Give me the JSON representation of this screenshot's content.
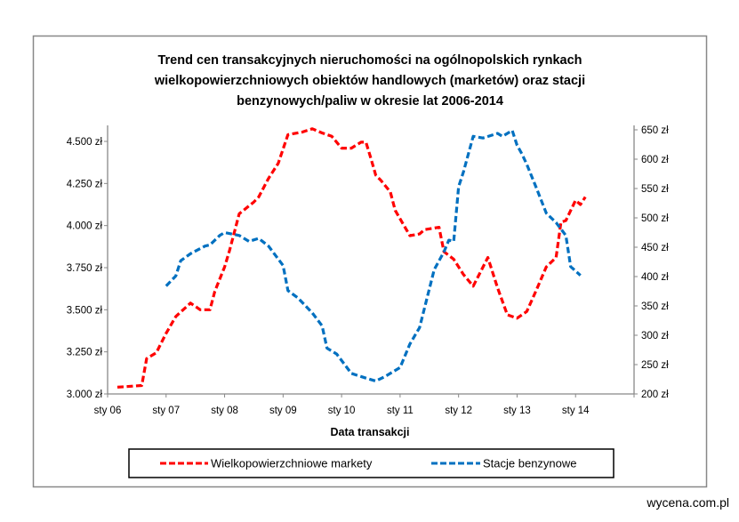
{
  "footer": "wycena.com.pl",
  "chart_data": {
    "type": "line",
    "title_lines": [
      "Trend cen transakcyjnych nieruchomości na ogólnopolskich rynkach",
      "wielkopowierzchniowych obiektów handlowych (marketów) oraz stacji",
      "benzynowych/paliw w okresie lat 2006-2014"
    ],
    "xlabel": "Data transakcji",
    "x_ticks": [
      "sty 06",
      "sty 07",
      "sty 08",
      "sty 09",
      "sty 10",
      "sty 11",
      "sty 12",
      "sty 13",
      "sty 14"
    ],
    "xlim": [
      "2006-01",
      "2015-01"
    ],
    "y_left_ticks": [
      "3.000 zł",
      "3.250 zł",
      "3.500 zł",
      "3.750 zł",
      "4.000 zł",
      "4.250 zł",
      "4.500 zł"
    ],
    "y_left_lim": [
      3.0,
      4.6
    ],
    "y_right_ticks": [
      "200 zł",
      "250 zł",
      "300 zł",
      "350 zł",
      "400 zł",
      "450 zł",
      "500 zł",
      "550 zł",
      "600 zł",
      "650 zł"
    ],
    "y_right_lim": [
      200,
      650
    ],
    "grid": false,
    "legend_position": "bottom",
    "series": [
      {
        "name": "Wielkopowierzchniowe markety",
        "axis": "left",
        "color": "#ff0000",
        "x": [
          "2006-03",
          "2006-08",
          "2006-09",
          "2006-11",
          "2007-01",
          "2007-03",
          "2007-06",
          "2007-08",
          "2007-10",
          "2007-11",
          "2008-01",
          "2008-02",
          "2008-04",
          "2008-07",
          "2008-08",
          "2008-10",
          "2008-12",
          "2009-02",
          "2009-05",
          "2009-07",
          "2009-09",
          "2009-11",
          "2010-01",
          "2010-03",
          "2010-05",
          "2010-06",
          "2010-07",
          "2010-08",
          "2010-09",
          "2010-11",
          "2010-12",
          "2011-03",
          "2011-05",
          "2011-06",
          "2011-09",
          "2011-10",
          "2011-12",
          "2012-02",
          "2012-04",
          "2012-07",
          "2012-09",
          "2012-11",
          "2013-01",
          "2013-03",
          "2013-05",
          "2013-07",
          "2013-09",
          "2013-10",
          "2013-11",
          "2014-01",
          "2014-02",
          "2014-03"
        ],
        "values": [
          3.04,
          3.05,
          3.21,
          3.245,
          3.36,
          3.46,
          3.54,
          3.5,
          3.5,
          3.61,
          3.755,
          3.85,
          4.07,
          4.14,
          4.17,
          4.28,
          4.37,
          4.54,
          4.556,
          4.575,
          4.55,
          4.53,
          4.46,
          4.46,
          4.495,
          4.495,
          4.4,
          4.3,
          4.27,
          4.2,
          4.09,
          3.94,
          3.95,
          3.976,
          3.99,
          3.845,
          3.8,
          3.71,
          3.64,
          3.81,
          3.63,
          3.47,
          3.45,
          3.49,
          3.62,
          3.755,
          3.81,
          4.02,
          4.03,
          4.15,
          4.125,
          4.17
        ]
      },
      {
        "name": "Stacje benzynowe",
        "axis": "right",
        "color": "#0070c0",
        "x": [
          "2007-01",
          "2007-03",
          "2007-04",
          "2007-06",
          "2007-09",
          "2007-10",
          "2007-12",
          "2008-01",
          "2008-04",
          "2008-06",
          "2008-08",
          "2008-10",
          "2009-01",
          "2009-02",
          "2009-04",
          "2009-07",
          "2009-09",
          "2009-10",
          "2009-12",
          "2010-03",
          "2010-06",
          "2010-08",
          "2010-10",
          "2011-01",
          "2011-03",
          "2011-05",
          "2011-08",
          "2011-10",
          "2011-11",
          "2011-12",
          "2012-01",
          "2012-02",
          "2012-04",
          "2012-06",
          "2012-09",
          "2012-10",
          "2012-12",
          "2013-01",
          "2013-02",
          "2013-03",
          "2013-05",
          "2013-07",
          "2013-09",
          "2013-11",
          "2013-12",
          "2014-02"
        ],
        "values": [
          384,
          401,
          427,
          439,
          452,
          454,
          470,
          475,
          470,
          460,
          465,
          452,
          419,
          376,
          364,
          338,
          316,
          278,
          268,
          235,
          227,
          222,
          230,
          245,
          285,
          313,
          412,
          442,
          462,
          460,
          553,
          578,
          639,
          636,
          644,
          639,
          649,
          624,
          609,
          591,
          550,
          508,
          492,
          470,
          417,
          402
        ]
      }
    ]
  }
}
